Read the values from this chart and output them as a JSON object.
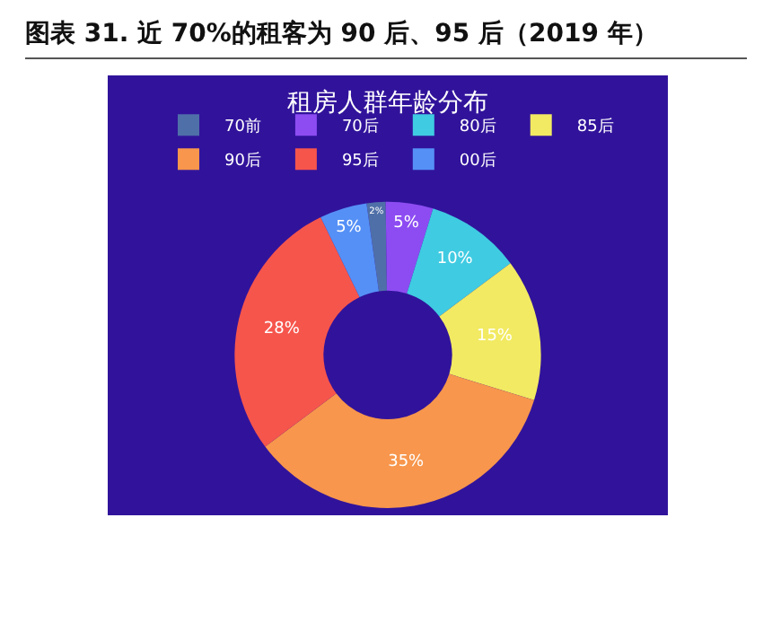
{
  "chart_data": {
    "type": "donut",
    "title": "图表 31. 近 70%的租客为 90 后、95 后（2019 年）",
    "subtitle": "租房人群年龄分布",
    "categories": [
      "70前",
      "70后",
      "80后",
      "85后",
      "90后",
      "95后",
      "00后"
    ],
    "values": [
      2,
      5,
      10,
      15,
      35,
      28,
      5
    ],
    "value_labels": [
      "2%",
      "5%",
      "10%",
      "15%",
      "35%",
      "28%",
      "5%"
    ],
    "colors": [
      "#4f6fa8",
      "#8d4cf2",
      "#3fcbe2",
      "#f2ea62",
      "#f7964c",
      "#f6554c",
      "#5590f6"
    ],
    "legend": "top"
  }
}
